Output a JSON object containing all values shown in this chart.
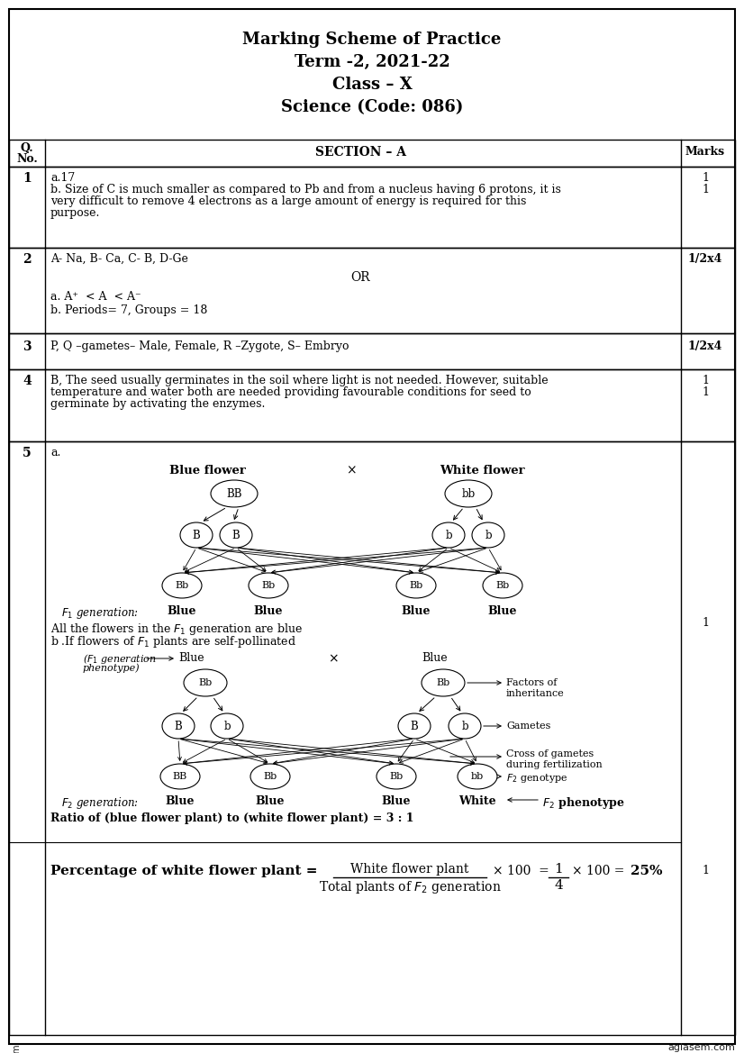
{
  "title_lines": [
    "Marking Scheme of Practice",
    "Term -2, 2021-22",
    "Class – X",
    "Science (Code: 086)"
  ],
  "bg_color": "#ffffff",
  "footer_left": "docs.aglasem.com",
  "footer_right": "aglasem.com"
}
